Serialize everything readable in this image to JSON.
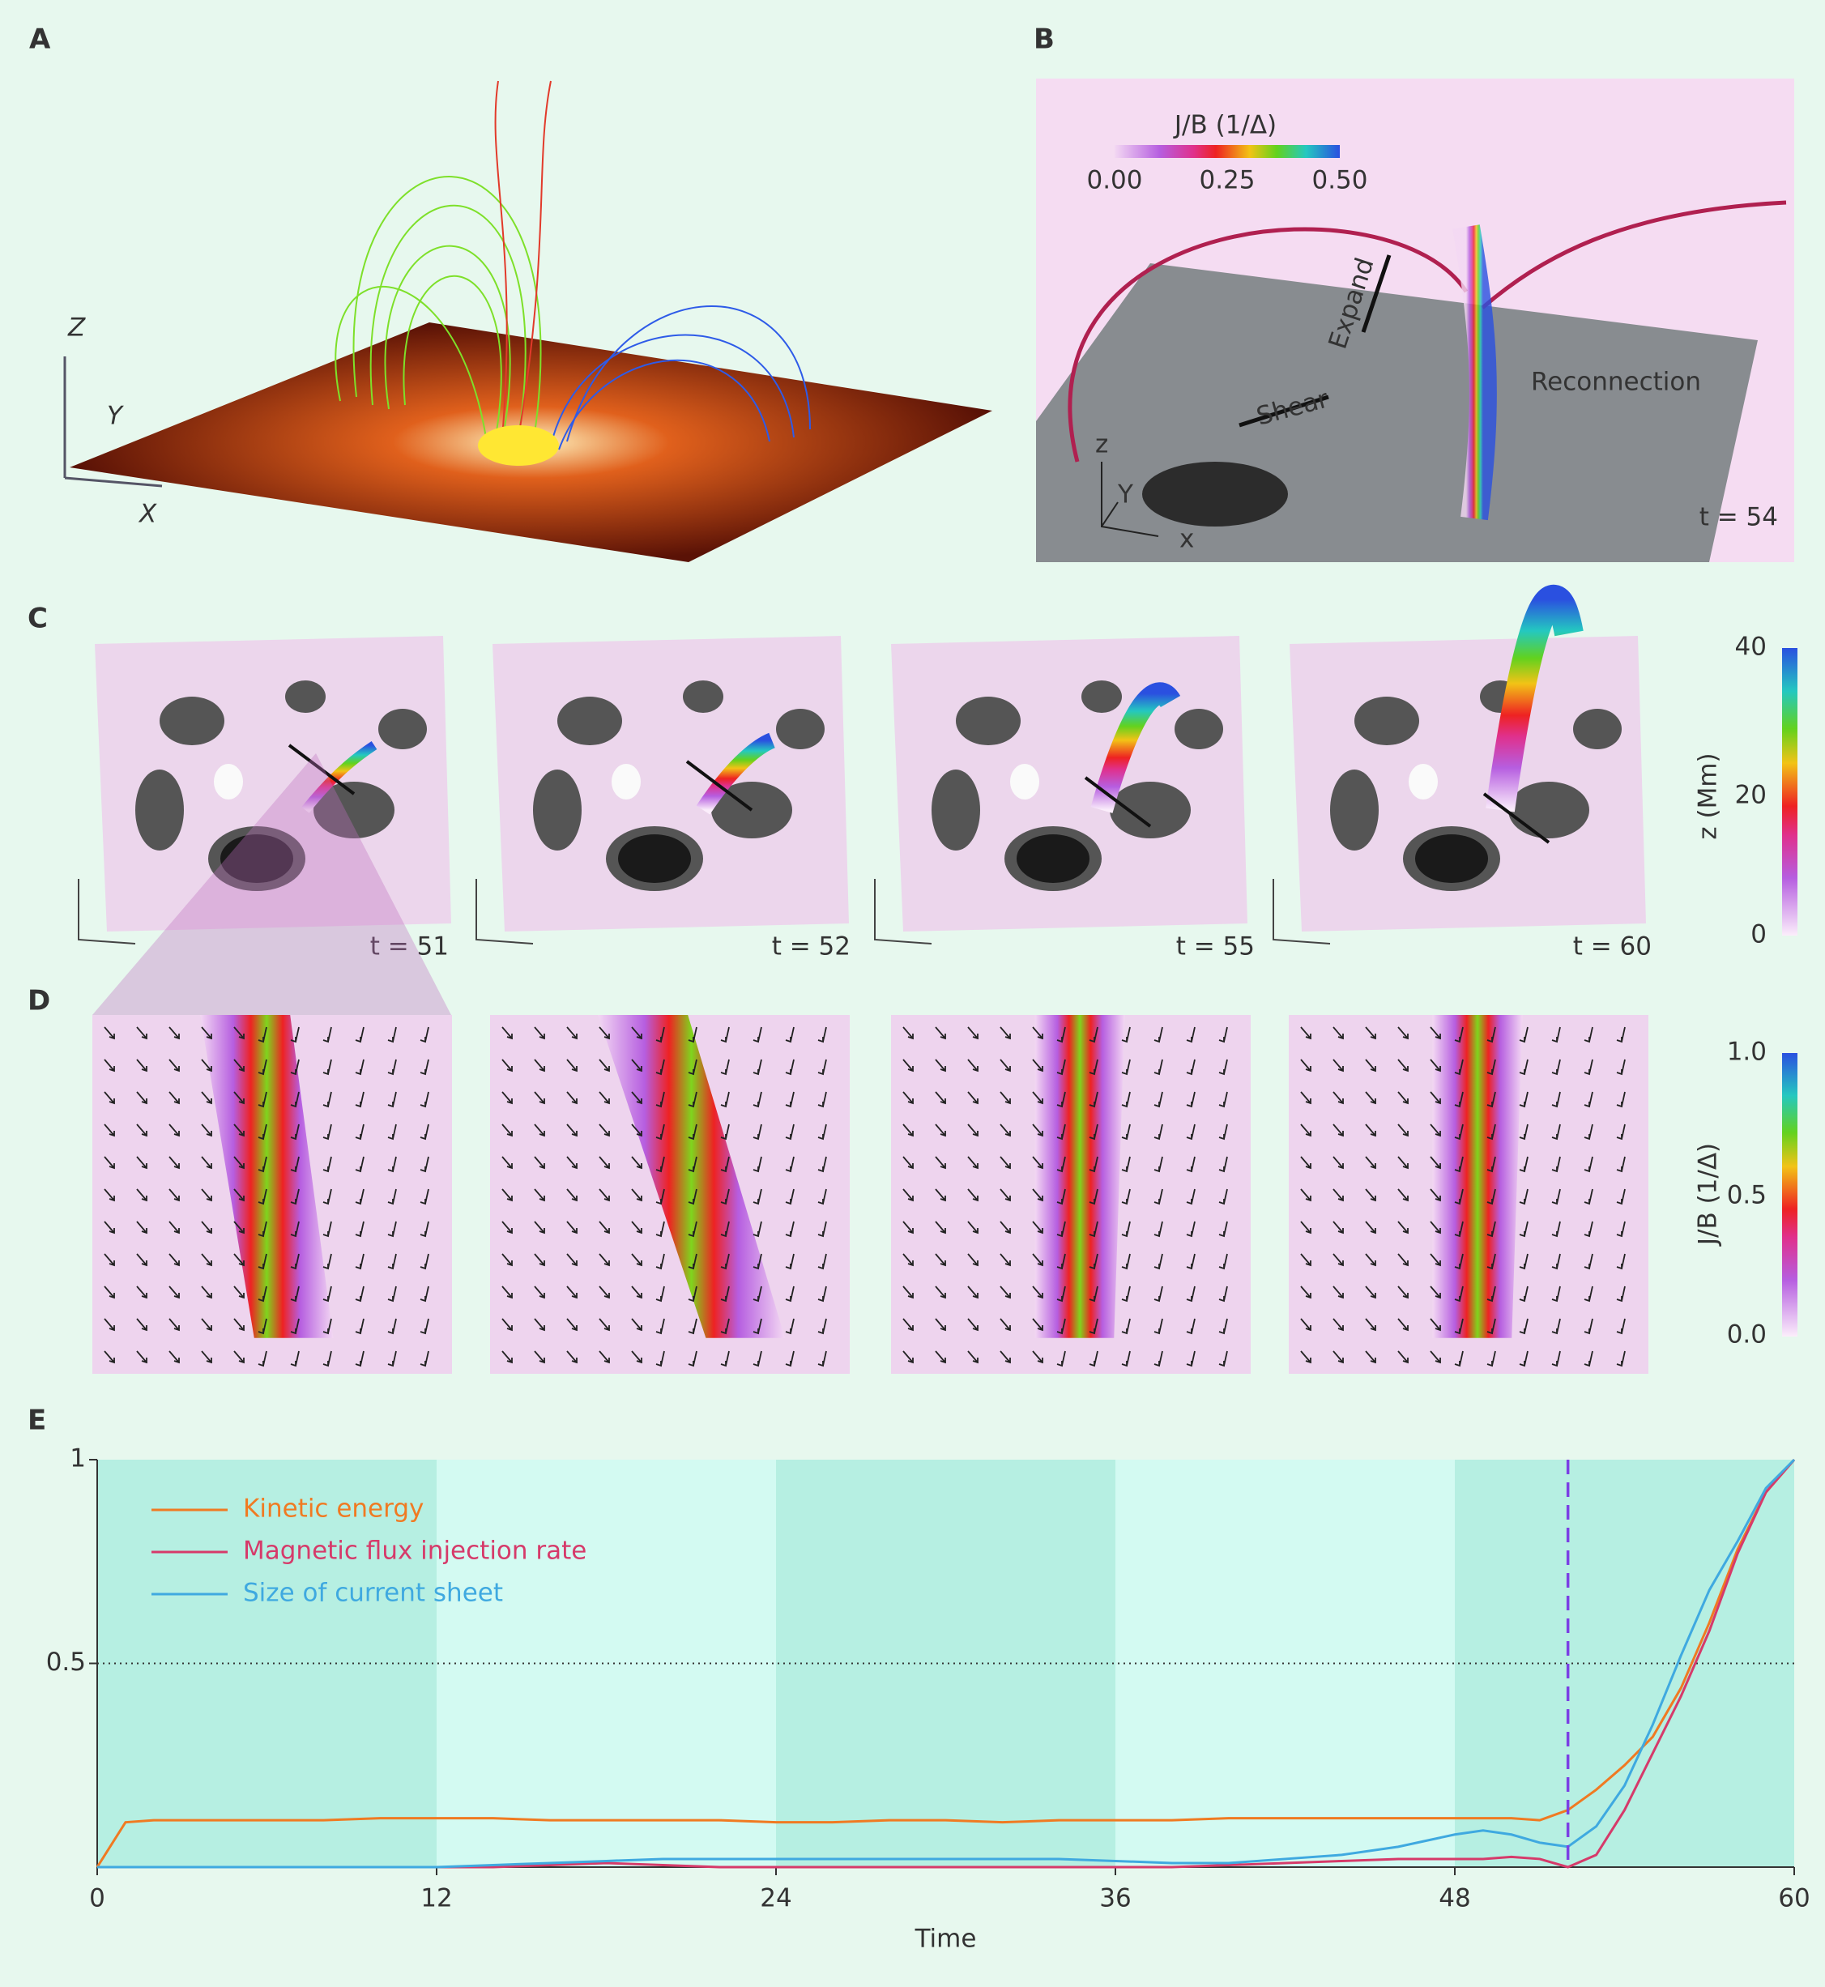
{
  "panels": {
    "a": {
      "label": "A",
      "axes": [
        "Z",
        "Y",
        "X"
      ]
    },
    "b": {
      "label": "B",
      "colorbar": {
        "title": "J/B (1/Δ)",
        "ticks": [
          "0.00",
          "0.25",
          "0.50"
        ]
      },
      "annotations": [
        "Expand",
        "Shear",
        "Reconnection"
      ],
      "axes": [
        "z",
        "Y",
        "x"
      ],
      "time": "t = 54"
    },
    "c": {
      "label": "C",
      "times": [
        "t = 51",
        "t = 52",
        "t = 55",
        "t = 60"
      ],
      "colorbar": {
        "title": "z (Mm)",
        "ticks": [
          0,
          20,
          40
        ]
      }
    },
    "d": {
      "label": "D",
      "colorbar": {
        "title": "J/B (1/Δ)",
        "ticks": [
          "0.0",
          "0.5",
          "1.0"
        ]
      }
    },
    "e": {
      "label": "E"
    }
  },
  "chart_data": {
    "type": "line",
    "xlabel": "Time",
    "x": [
      0,
      1,
      2,
      4,
      6,
      8,
      10,
      12,
      14,
      16,
      18,
      20,
      22,
      24,
      26,
      28,
      30,
      32,
      34,
      36,
      38,
      40,
      42,
      44,
      46,
      48,
      49,
      50,
      51,
      52,
      53,
      54,
      55,
      56,
      57,
      58,
      59,
      60
    ],
    "series": [
      {
        "name": "Kinetic energy",
        "color": "#f07a22",
        "values": [
          0,
          0.11,
          0.115,
          0.115,
          0.115,
          0.115,
          0.12,
          0.12,
          0.12,
          0.115,
          0.115,
          0.115,
          0.115,
          0.11,
          0.11,
          0.115,
          0.115,
          0.11,
          0.115,
          0.115,
          0.115,
          0.12,
          0.12,
          0.12,
          0.12,
          0.12,
          0.12,
          0.12,
          0.115,
          0.14,
          0.19,
          0.25,
          0.32,
          0.44,
          0.6,
          0.78,
          0.92,
          1
        ]
      },
      {
        "name": "Magnetic flux injection rate",
        "color": "#d63a6a",
        "values": [
          0,
          0,
          0,
          0,
          0,
          0,
          0,
          0,
          0,
          0.005,
          0.01,
          0.005,
          0,
          0,
          0,
          0,
          0,
          0,
          0,
          0,
          0,
          0.005,
          0.01,
          0.015,
          0.02,
          0.02,
          0.02,
          0.025,
          0.02,
          0,
          0.03,
          0.14,
          0.28,
          0.42,
          0.58,
          0.77,
          0.92,
          1
        ]
      },
      {
        "name": "Size of current sheet",
        "color": "#3fa9e0",
        "values": [
          0,
          0,
          0,
          0,
          0,
          0,
          0,
          0,
          0.005,
          0.01,
          0.015,
          0.02,
          0.02,
          0.02,
          0.02,
          0.02,
          0.02,
          0.02,
          0.02,
          0.015,
          0.01,
          0.01,
          0.02,
          0.03,
          0.05,
          0.08,
          0.09,
          0.08,
          0.06,
          0.05,
          0.1,
          0.2,
          0.35,
          0.52,
          0.68,
          0.8,
          0.93,
          1
        ]
      }
    ],
    "xlim": [
      0,
      60
    ],
    "xticks": [
      0,
      12,
      24,
      36,
      48,
      60
    ],
    "ylim": [
      0,
      1
    ],
    "yticks": [
      0.5,
      1
    ],
    "hline": 0.5,
    "vline": 52
  }
}
